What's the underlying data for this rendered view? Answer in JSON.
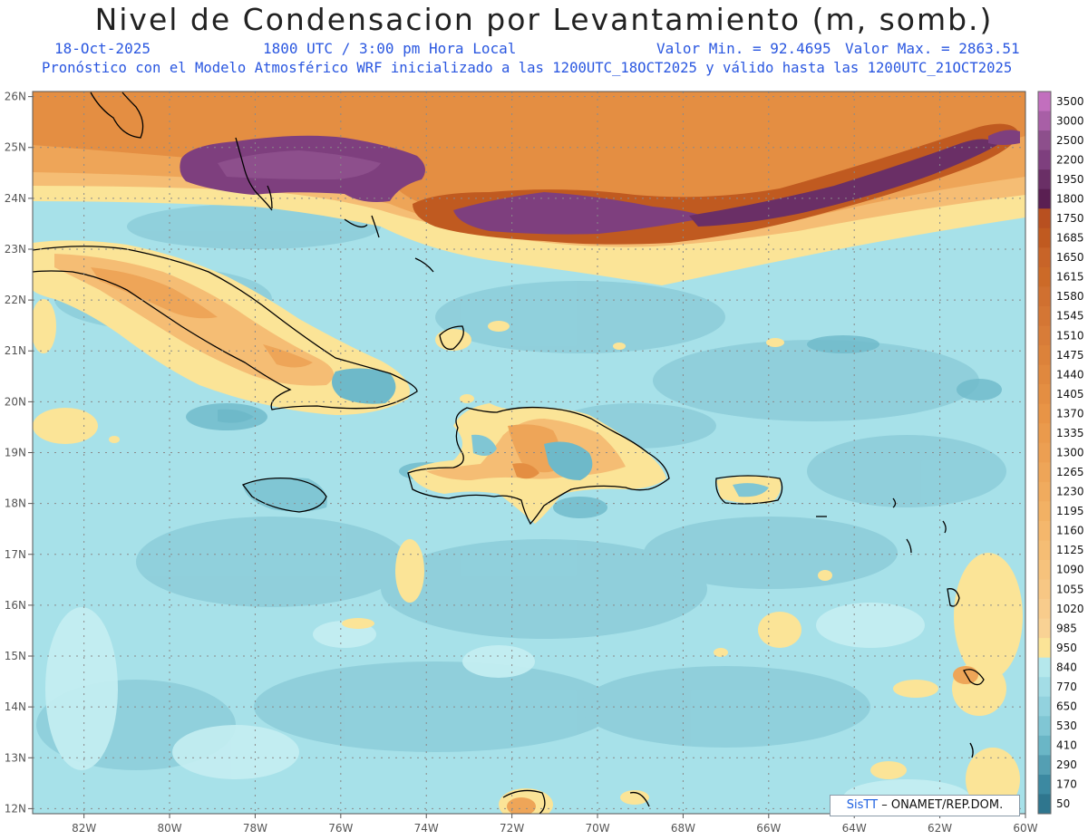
{
  "header": {
    "title": "Nivel de Condensacion por Levantamiento (m, somb.)",
    "date": "18-Oct-2025",
    "time": "1800 UTC / 3:00 pm Hora Local",
    "min_label": "Valor Min. = 92.4695",
    "max_label": "Valor Max. = 2863.51",
    "model_line": "Pronóstico con el Modelo Atmosférico WRF inicializado a las 1200UTC_18OCT2025 y válido hasta las 1200UTC_21OCT2025"
  },
  "credit": {
    "brand": "SisTT",
    "org": "– ONAMET/REP.DOM."
  },
  "map_data": {
    "lon_range": [
      -83.2,
      -60
    ],
    "lat_range": [
      11.9,
      26.1
    ],
    "lon_ticks": [
      "82W",
      "80W",
      "78W",
      "76W",
      "74W",
      "72W",
      "70W",
      "68W",
      "66W",
      "64W",
      "62W",
      "60W"
    ],
    "lat_ticks": [
      "12N",
      "13N",
      "14N",
      "15N",
      "16N",
      "17N",
      "18N",
      "19N",
      "20N",
      "21N",
      "22N",
      "23N",
      "24N",
      "25N",
      "26N"
    ],
    "grid": true
  },
  "legend": {
    "levels": [
      "3500",
      "3000",
      "2500",
      "2200",
      "1950",
      "1800",
      "1750",
      "1685",
      "1650",
      "1615",
      "1580",
      "1545",
      "1510",
      "1475",
      "1440",
      "1405",
      "1370",
      "1335",
      "1300",
      "1265",
      "1230",
      "1195",
      "1160",
      "1125",
      "1090",
      "1055",
      "1020",
      "985",
      "950",
      "840",
      "770",
      "650",
      "530",
      "410",
      "290",
      "170",
      "50"
    ],
    "colors": [
      "#c26fbe",
      "#a85fa6",
      "#8d4f8c",
      "#7e3f7e",
      "#6a2f66",
      "#5a1f52",
      "#b85020",
      "#c05a20",
      "#c86428",
      "#cc6a28",
      "#d07030",
      "#d47634",
      "#d87c38",
      "#dc823a",
      "#e0883e",
      "#e48e42",
      "#e89446",
      "#ea9a4c",
      "#ec9f52",
      "#eea558",
      "#f0ab5e",
      "#f2b164",
      "#f4b76c",
      "#f5bd74",
      "#f6c27c",
      "#f7c784",
      "#f8cc8c",
      "#f9d294",
      "#fbe497",
      "#b5e8ec",
      "#a3dde6",
      "#92d2de",
      "#80c6d4",
      "#6ab6c6",
      "#549fb3",
      "#3c89a1",
      "#2f768e"
    ]
  }
}
